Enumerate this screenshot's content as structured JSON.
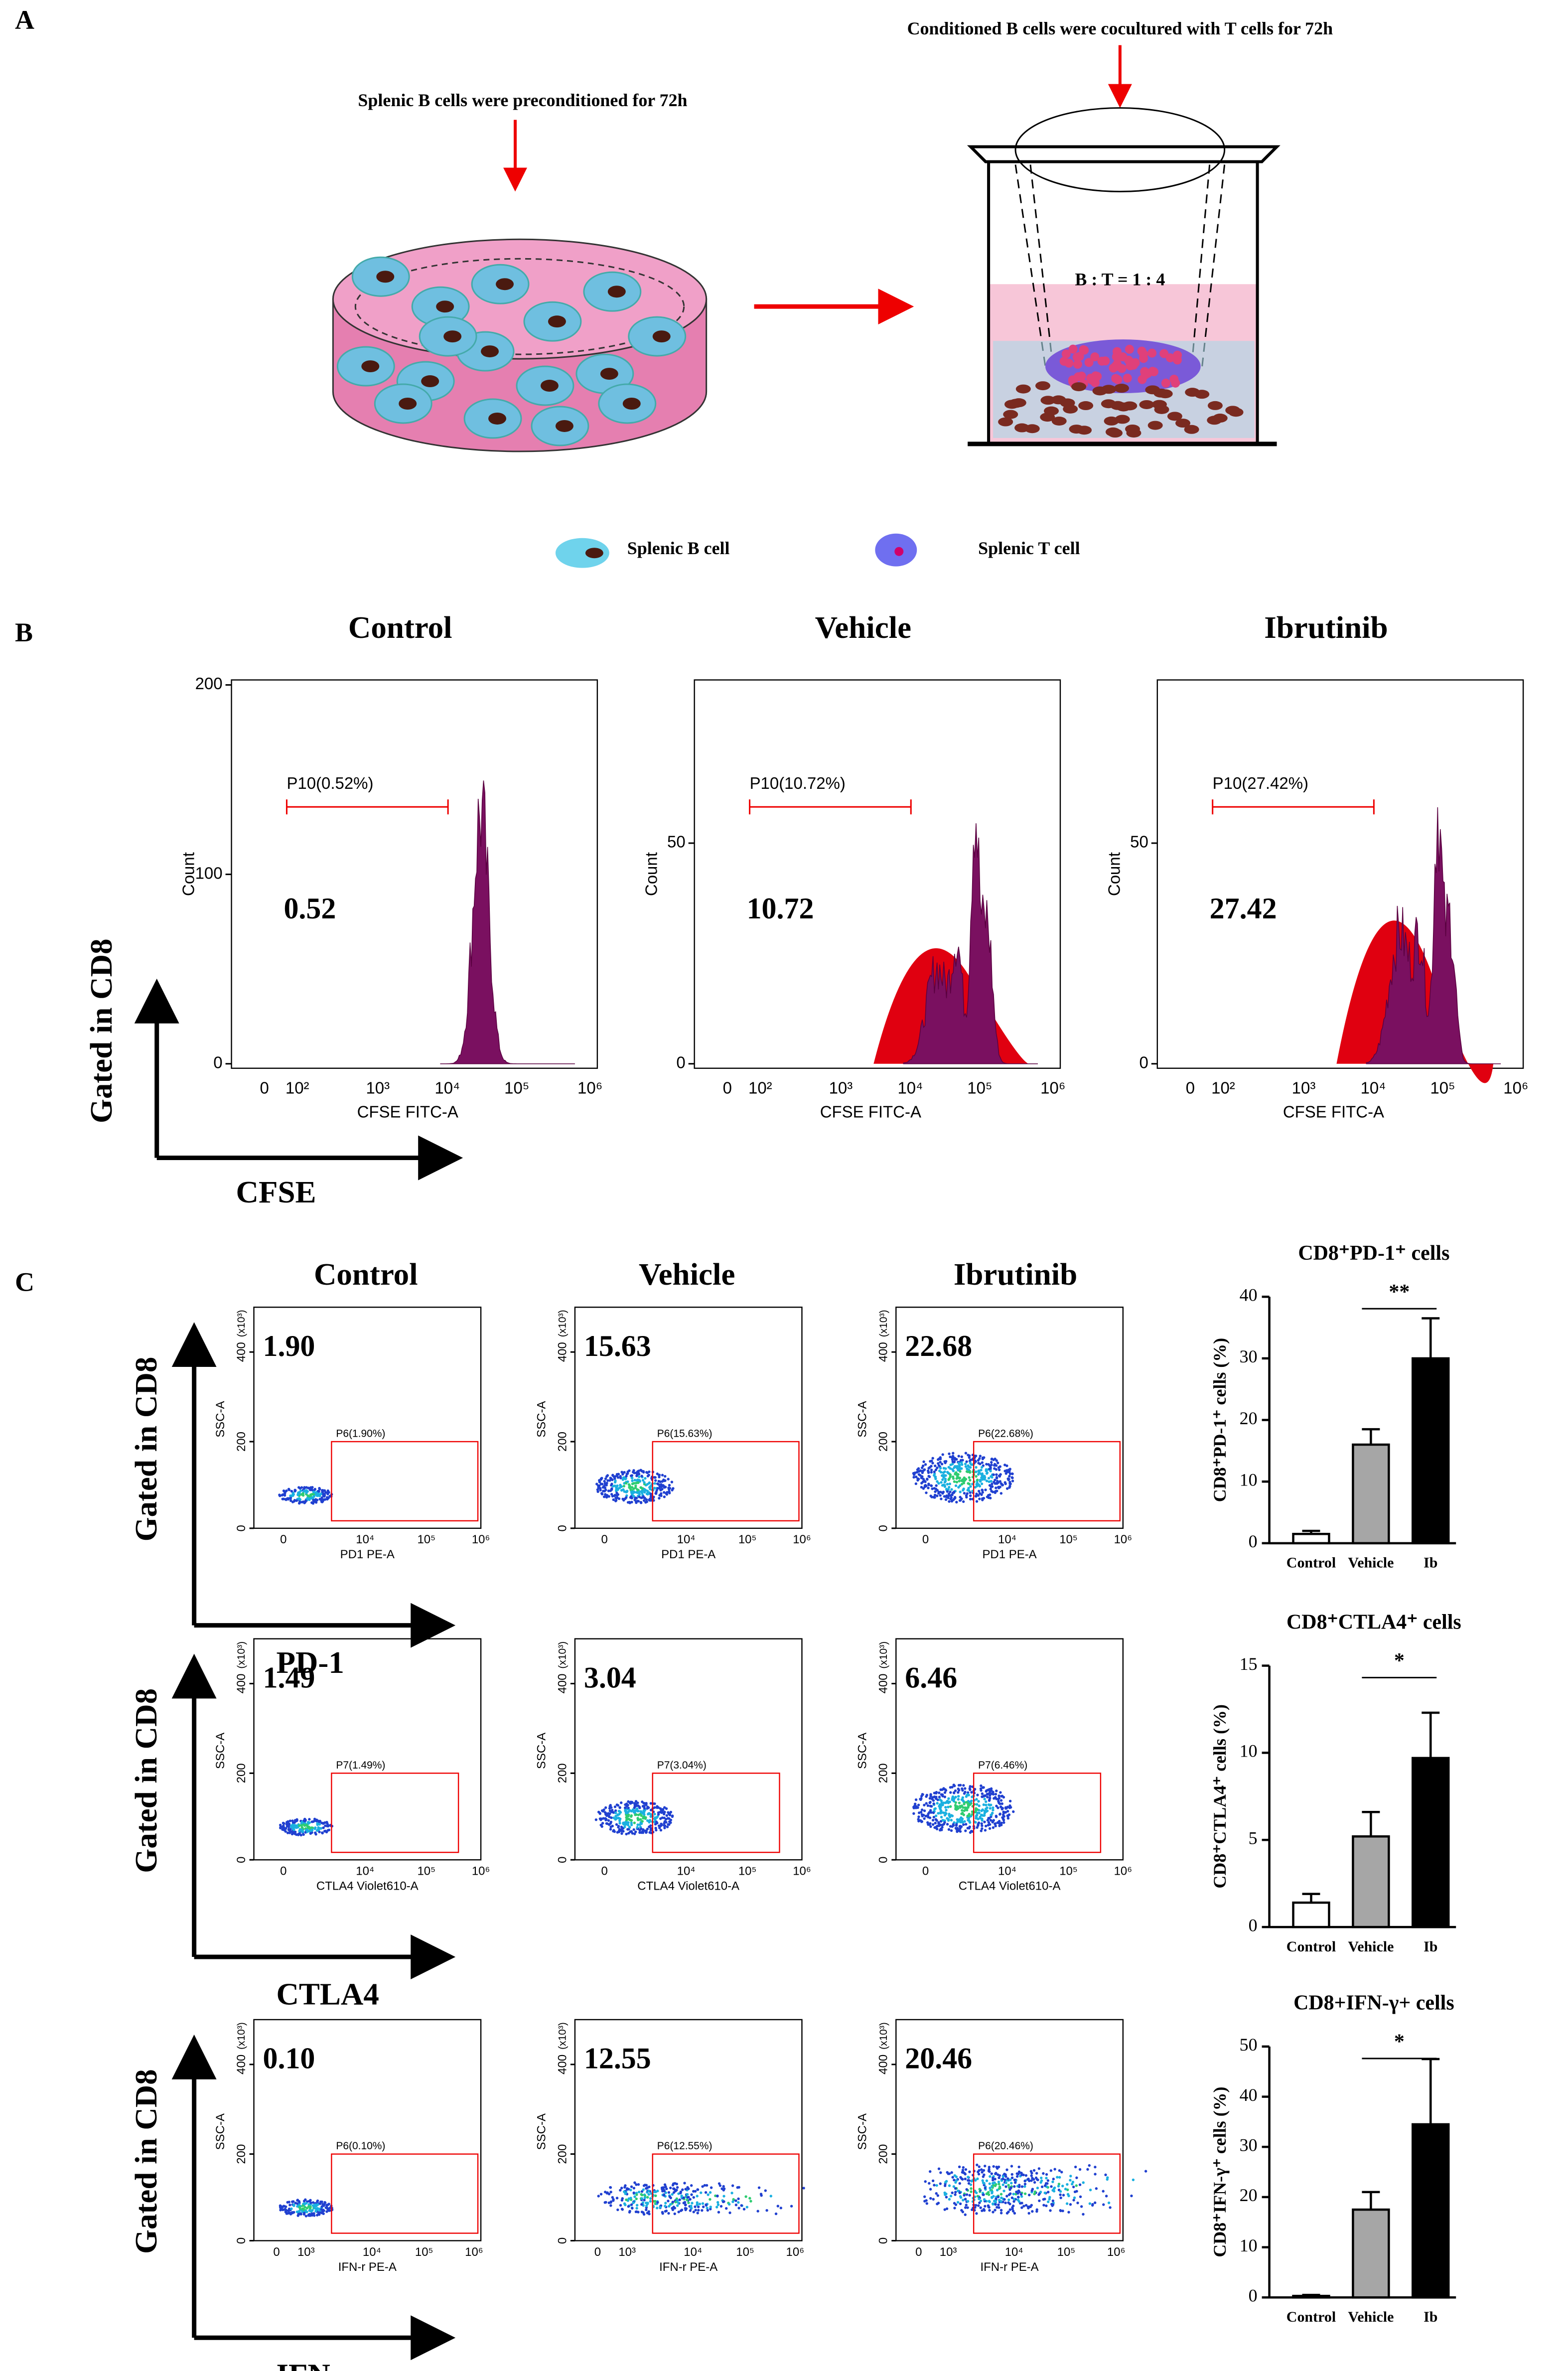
{
  "panel_labels": [
    "A",
    "B",
    "C"
  ],
  "schematic": {
    "step1": "Splenic B cells were preconditioned for 72h",
    "step2": "Conditioned B cells were cocultured with T cells for 72h",
    "ratio": "B : T = 1 : 4",
    "legend": [
      "Splenic B cell",
      "Splenic T cell"
    ]
  },
  "panel_b": {
    "y_axis_title": "Gated in CD8",
    "x_axis_title": "CFSE",
    "ylabel": "Count",
    "xlabel": "CFSE FITC-A",
    "xticks": [
      "0",
      "10²",
      "10³",
      "10⁴",
      "10⁵",
      "10⁶"
    ],
    "plots": [
      {
        "title": "Control",
        "gate": "P10(0.52%)",
        "value": "0.52",
        "ylim": [
          0,
          205
        ],
        "yticks": [
          0,
          100,
          200
        ]
      },
      {
        "title": "Vehicle",
        "gate": "P10(10.72%)",
        "value": "10.72",
        "ylim": [
          0,
          88
        ],
        "yticks": [
          0,
          50
        ]
      },
      {
        "title": "Ibrutinib",
        "gate": "P10(27.42%)",
        "value": "27.42",
        "ylim": [
          0,
          88
        ],
        "yticks": [
          0,
          50
        ]
      }
    ]
  },
  "panel_c": {
    "columns": [
      "Control",
      "Vehicle",
      "Ibrutinib"
    ],
    "y_axis_title": "Gated in CD8",
    "ylabel": "SSC-A",
    "yscale": "(x10³)",
    "yticks": [
      "0",
      "200",
      "400"
    ],
    "rows": [
      {
        "marker": "PD-1",
        "xlabel": "PD1 PE-A",
        "xticks": [
          "0",
          "10⁴",
          "10⁵",
          "10⁶"
        ],
        "plots": [
          {
            "value": "1.90",
            "gate": "P6(1.90%)"
          },
          {
            "value": "15.63",
            "gate": "P6(15.63%)"
          },
          {
            "value": "22.68",
            "gate": "P6(22.68%)"
          }
        ]
      },
      {
        "marker": "CTLA4",
        "xlabel": "CTLA4 Violet610-A",
        "xticks": [
          "0",
          "10⁴",
          "10⁵",
          "10⁶"
        ],
        "plots": [
          {
            "value": "1.49",
            "gate": "P7(1.49%)"
          },
          {
            "value": "3.04",
            "gate": "P7(3.04%)"
          },
          {
            "value": "6.46",
            "gate": "P7(6.46%)"
          }
        ]
      },
      {
        "marker": "IFN-γ",
        "xlabel": "IFN-r PE-A",
        "xticks": [
          "0",
          "10³",
          "10⁴",
          "10⁵",
          "10⁶"
        ],
        "plots": [
          {
            "value": "0.10",
            "gate": "P6(0.10%)"
          },
          {
            "value": "12.55",
            "gate": "P6(12.55%)"
          },
          {
            "value": "20.46",
            "gate": "P6(20.46%)"
          }
        ]
      }
    ]
  },
  "chart_data": [
    {
      "type": "bar",
      "title": "CD8⁺PD-1⁺ cells",
      "ylabel": "CD8⁺PD-1⁺ cells (%)",
      "categories": [
        "Control",
        "Vehicle",
        "Ib"
      ],
      "values": [
        1.5,
        16,
        30
      ],
      "errors": [
        0.5,
        2.5,
        6.5
      ],
      "colors": [
        "#ffffff",
        "#a6a6a6",
        "#000000"
      ],
      "ylim": [
        0,
        40
      ],
      "yticks": [
        0,
        10,
        20,
        30,
        40
      ],
      "significance": "**"
    },
    {
      "type": "bar",
      "title": "CD8⁺CTLA4⁺ cells",
      "ylabel": "CD8⁺CTLA4⁺ cells (%)",
      "categories": [
        "Control",
        "Vehicle",
        "Ib"
      ],
      "values": [
        1.4,
        5.2,
        9.7
      ],
      "errors": [
        0.5,
        1.4,
        2.6
      ],
      "colors": [
        "#ffffff",
        "#a6a6a6",
        "#000000"
      ],
      "ylim": [
        0,
        15
      ],
      "yticks": [
        0,
        5,
        10,
        15
      ],
      "significance": "*"
    },
    {
      "type": "bar",
      "title": "CD8+IFN-γ+ cells",
      "ylabel": "CD8⁺IFN-γ⁺ cells (%)",
      "categories": [
        "Control",
        "Vehicle",
        "Ib"
      ],
      "values": [
        0.3,
        17.5,
        34.5
      ],
      "errors": [
        0.2,
        3.5,
        13
      ],
      "colors": [
        "#ffffff",
        "#a6a6a6",
        "#000000"
      ],
      "ylim": [
        0,
        50
      ],
      "yticks": [
        0,
        10,
        20,
        30,
        40,
        50
      ],
      "significance": "*"
    }
  ]
}
